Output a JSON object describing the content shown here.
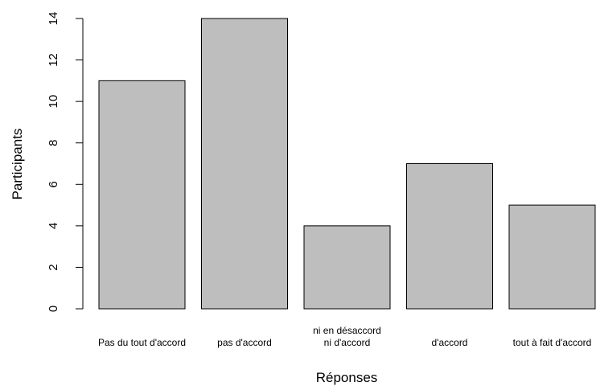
{
  "chart_data": {
    "type": "bar",
    "categories": [
      [
        "Pas du tout d'accord"
      ],
      [
        "pas d'accord"
      ],
      [
        "ni en désaccord",
        "ni d'accord"
      ],
      [
        "d'accord"
      ],
      [
        "tout à fait d'accord"
      ]
    ],
    "values": [
      11,
      14,
      4,
      7,
      5
    ],
    "xlabel": "Réponses",
    "ylabel": "Participants",
    "ylim": [
      0,
      14
    ],
    "yticks": [
      0,
      2,
      4,
      6,
      8,
      10,
      12,
      14
    ],
    "grid": false,
    "legend": "none",
    "bar_color": "#bebebe",
    "edge_color": "#000000"
  }
}
